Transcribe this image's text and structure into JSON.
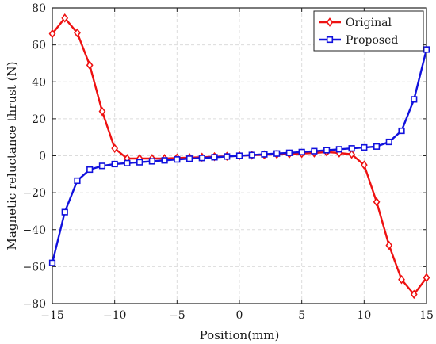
{
  "chart_data": {
    "type": "line",
    "xlabel": "Position(mm)",
    "ylabel": "Magnetic reluctance thrust (N)",
    "xlim": [
      -15,
      15
    ],
    "ylim": [
      -80,
      80
    ],
    "xticks": [
      -15,
      -10,
      -5,
      0,
      5,
      10,
      15
    ],
    "yticks": [
      -80,
      -60,
      -40,
      -20,
      0,
      20,
      40,
      60,
      80
    ],
    "grid": true,
    "legend_position": "top-right",
    "x": [
      -15,
      -14,
      -13,
      -12,
      -11,
      -10,
      -9,
      -8,
      -7,
      -6,
      -5,
      -4,
      -3,
      -2,
      -1,
      0,
      1,
      2,
      3,
      4,
      5,
      6,
      7,
      8,
      9,
      10,
      11,
      12,
      13,
      14,
      15
    ],
    "series": [
      {
        "name": "Original",
        "color": "#ee1111",
        "marker": "diamond",
        "values": [
          66,
          74.5,
          66.5,
          49,
          24,
          4,
          -1.5,
          -1.5,
          -1.5,
          -1.5,
          -1.2,
          -1,
          -0.8,
          -0.5,
          -0.3,
          0,
          0.3,
          0.5,
          0.8,
          1,
          1.2,
          1.5,
          2,
          1.5,
          0.8,
          -5,
          -25,
          -48.5,
          -67,
          -75,
          -66
        ]
      },
      {
        "name": "Proposed",
        "color": "#1111dd",
        "marker": "square",
        "values": [
          -58,
          -30.5,
          -13.5,
          -7.5,
          -5.5,
          -4.5,
          -4,
          -3.5,
          -3,
          -2.5,
          -2,
          -1.6,
          -1.2,
          -0.8,
          -0.4,
          0,
          0.4,
          0.8,
          1.2,
          1.6,
          2,
          2.5,
          3,
          3.5,
          4,
          4.5,
          5,
          7.5,
          13.5,
          30.5,
          57.5
        ]
      }
    ]
  }
}
